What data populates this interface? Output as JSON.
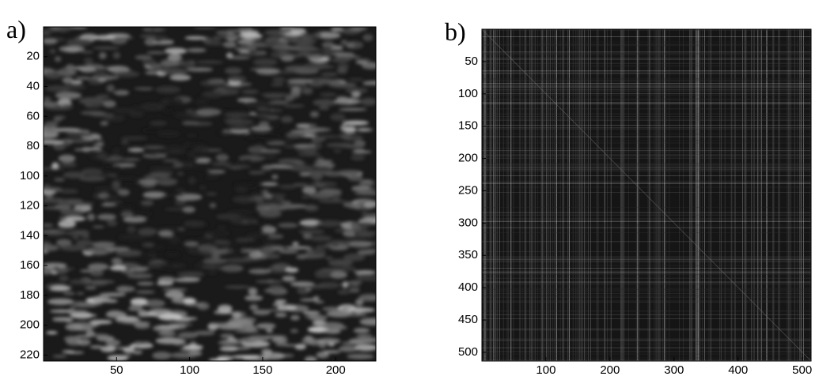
{
  "chart_data": [
    {
      "type": "image",
      "label": "a)",
      "xlim": [
        0,
        227.5
      ],
      "ylim": [
        0,
        224
      ],
      "xticks": [
        50,
        100,
        150,
        200
      ],
      "yticks": [
        20,
        40,
        60,
        80,
        100,
        120,
        140,
        160,
        180,
        200,
        220
      ]
    },
    {
      "type": "image",
      "label": "b)",
      "xlim": [
        0,
        514
      ],
      "ylim": [
        0,
        513.5
      ],
      "xticks": [
        100,
        200,
        300,
        400,
        500
      ],
      "yticks": [
        50,
        100,
        150,
        200,
        250,
        300,
        350,
        400,
        450,
        500
      ]
    }
  ]
}
